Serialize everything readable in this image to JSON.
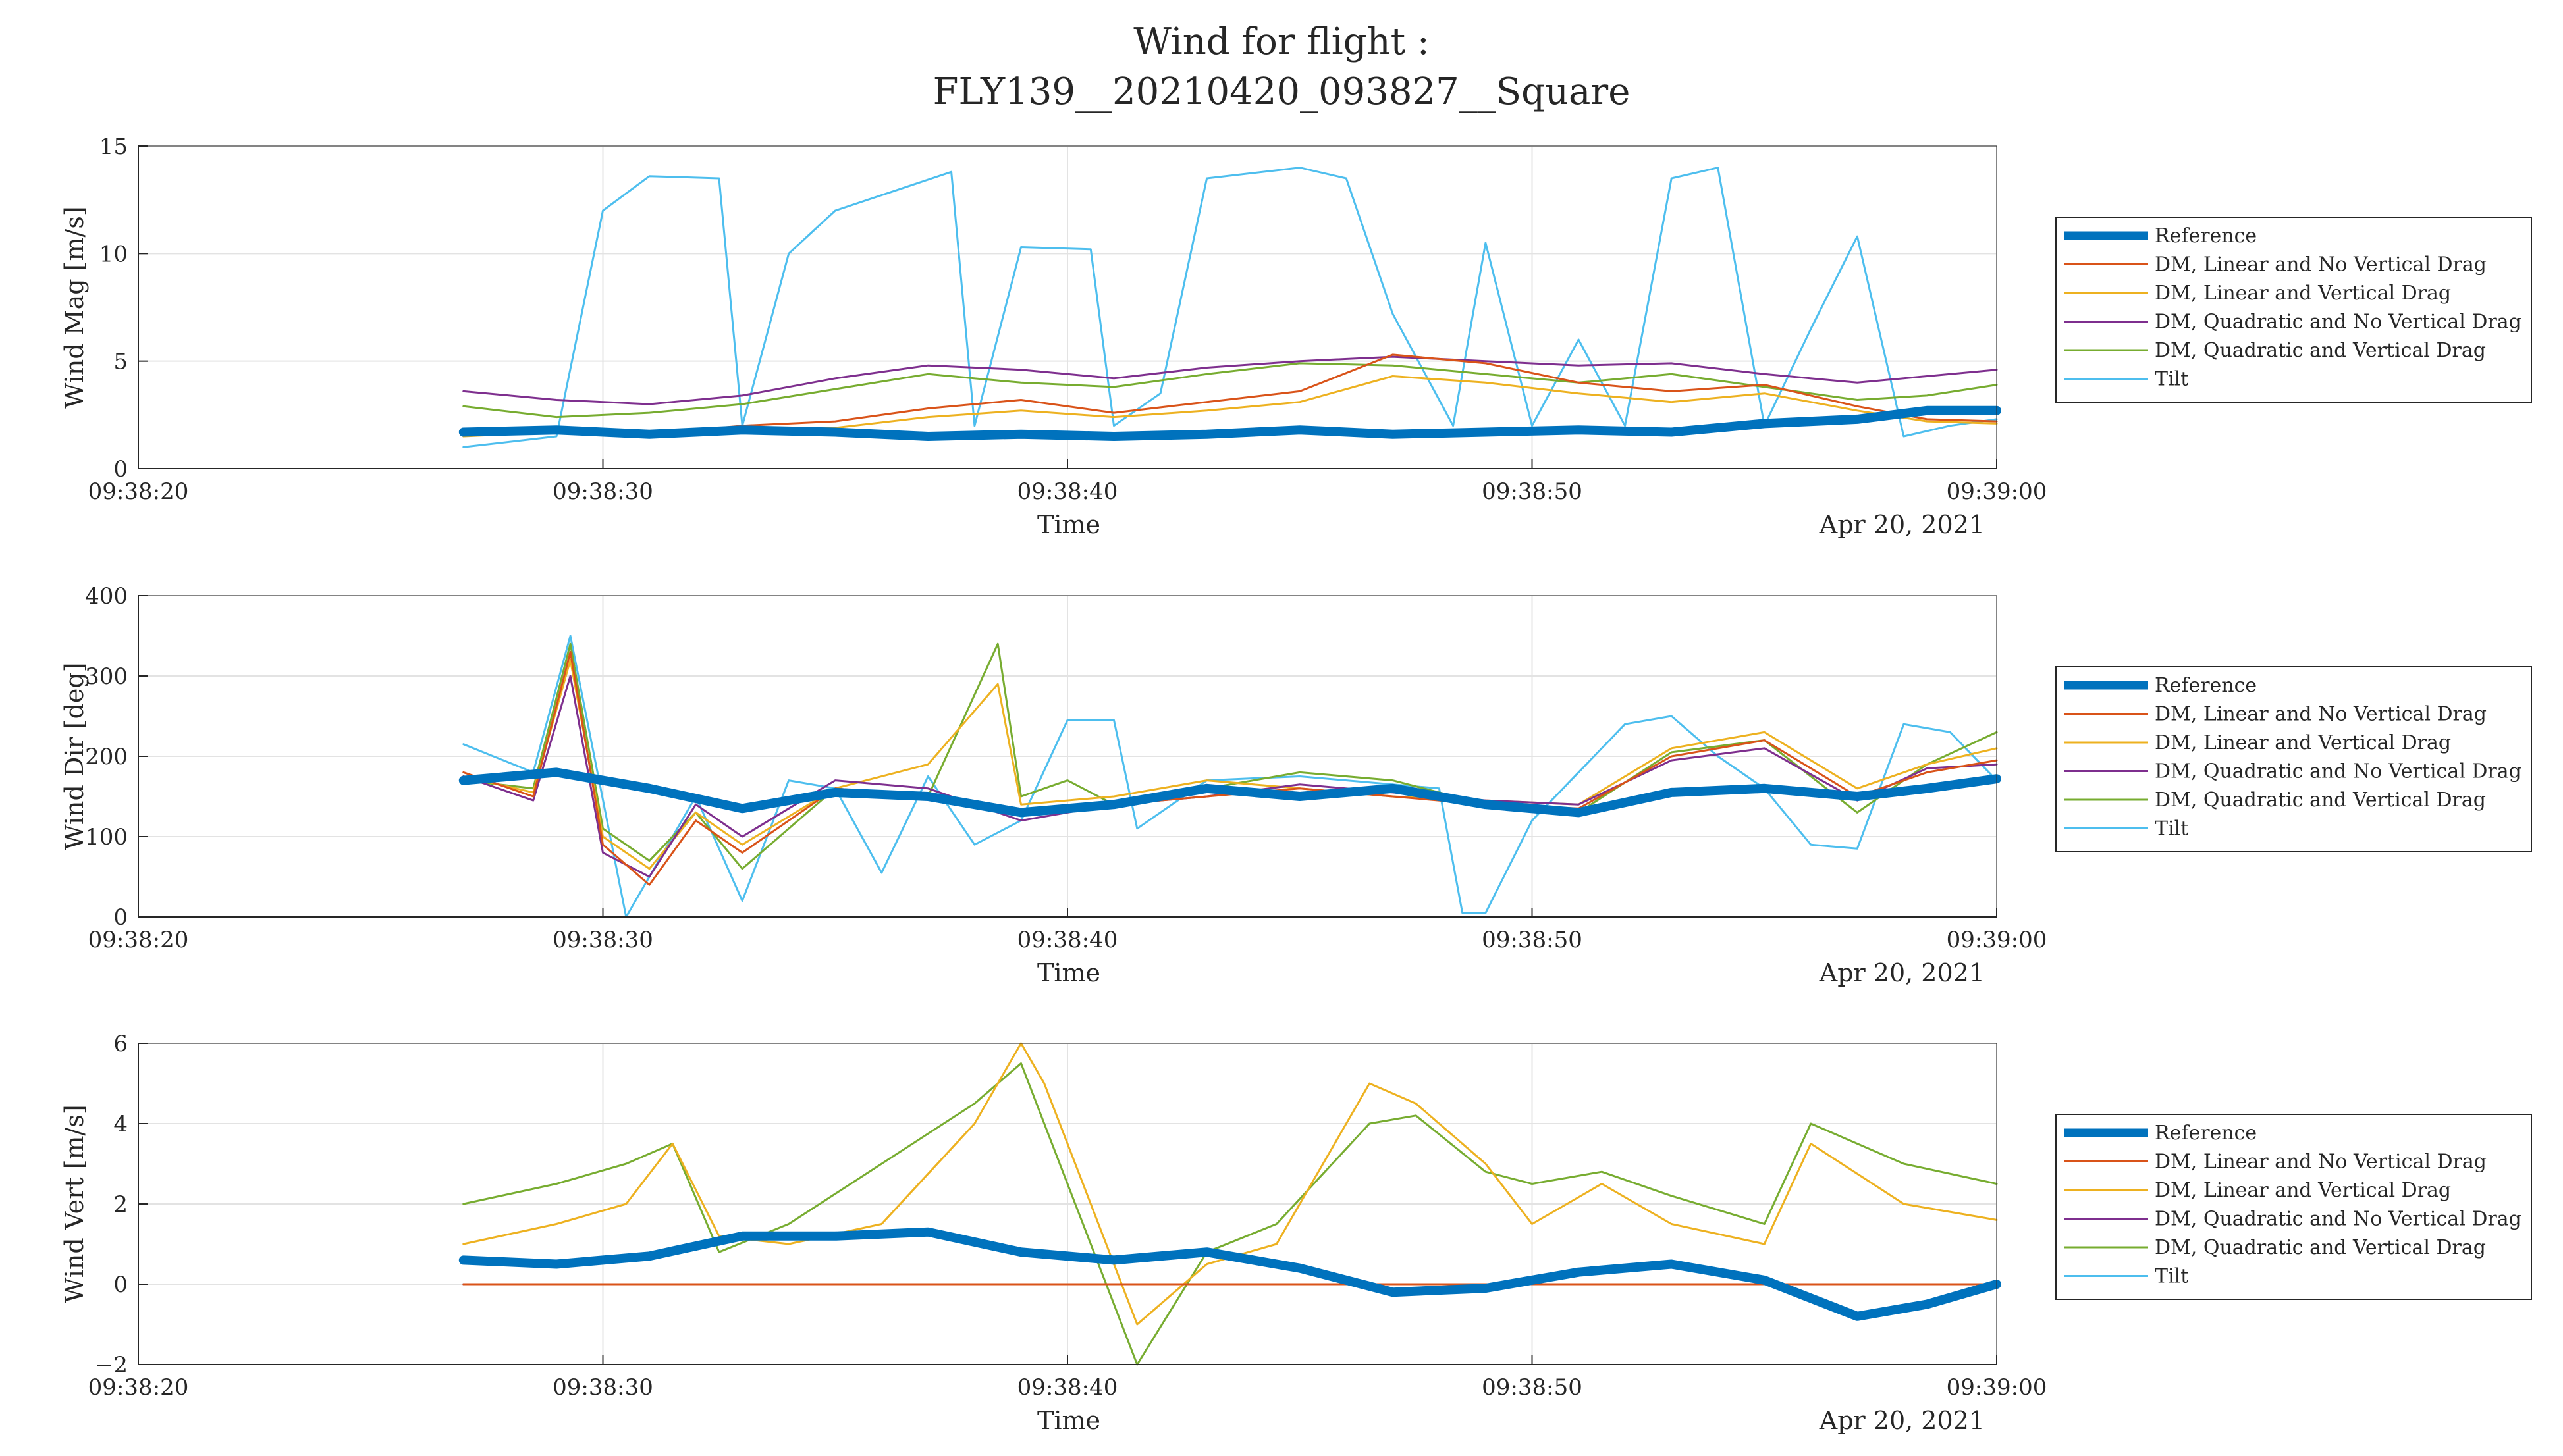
{
  "chart_data": {
    "type": "line",
    "title_lines": [
      "Wind for flight :",
      "FLY139__20210420_093827__Square"
    ],
    "x_tick_labels": [
      "09:38:20",
      "09:38:30",
      "09:38:40",
      "09:38:50",
      "09:39:00"
    ],
    "x_range_seconds": [
      0,
      40
    ],
    "xlabel": "Time",
    "date_label": "Apr 20, 2021",
    "colors": {
      "Reference": "#0072BD",
      "DM, Linear and No Vertical Drag": "#D95319",
      "DM, Linear and Vertical Drag": "#EDB120",
      "DM, Quadratic and No Vertical Drag": "#7E2F8E",
      "DM, Quadratic and Vertical Drag": "#77AC30",
      "Tilt": "#4DBEEE"
    },
    "legend": [
      "Reference",
      "DM, Linear and No Vertical Drag",
      "DM, Linear and Vertical Drag",
      "DM, Quadratic and No Vertical Drag",
      "DM, Quadratic and Vertical Drag",
      "Tilt"
    ],
    "panels": [
      {
        "ylabel": "Wind Mag [m/s]",
        "ylim": [
          0,
          15
        ],
        "yticks": [
          0,
          5,
          10,
          15
        ],
        "y_tick_labels": [
          "0",
          "5",
          "10",
          "15"
        ],
        "series": [
          {
            "name": "Reference",
            "x": [
              7,
              9,
              11,
              13,
              15,
              17,
              19,
              21,
              23,
              25,
              27,
              29,
              31,
              33,
              35,
              37,
              38.5,
              40
            ],
            "y": [
              1.7,
              1.8,
              1.6,
              1.8,
              1.7,
              1.5,
              1.6,
              1.5,
              1.6,
              1.8,
              1.6,
              1.7,
              1.8,
              1.7,
              2.1,
              2.3,
              2.7,
              2.7
            ]
          },
          {
            "name": "DM, Linear and No Vertical Drag",
            "x": [
              7,
              9,
              11,
              13,
              15,
              17,
              19,
              21,
              23,
              25,
              27,
              29,
              31,
              33,
              35,
              37,
              38.5,
              40
            ],
            "y": [
              1.8,
              1.9,
              1.6,
              2.0,
              2.2,
              2.8,
              3.2,
              2.6,
              3.1,
              3.6,
              5.3,
              4.9,
              4.0,
              3.6,
              3.9,
              2.9,
              2.3,
              2.2
            ]
          },
          {
            "name": "DM, Linear and Vertical Drag",
            "x": [
              7,
              9,
              11,
              13,
              15,
              17,
              19,
              21,
              23,
              25,
              27,
              29,
              31,
              33,
              35,
              37,
              38.5,
              40
            ],
            "y": [
              1.5,
              1.7,
              1.6,
              1.8,
              1.9,
              2.4,
              2.7,
              2.4,
              2.7,
              3.1,
              4.3,
              4.0,
              3.5,
              3.1,
              3.5,
              2.7,
              2.2,
              2.1
            ]
          },
          {
            "name": "DM, Quadratic and No Vertical Drag",
            "x": [
              7,
              9,
              11,
              13,
              15,
              17,
              19,
              21,
              23,
              25,
              27,
              29,
              31,
              33,
              35,
              37,
              38.5,
              40
            ],
            "y": [
              3.6,
              3.2,
              3.0,
              3.4,
              4.2,
              4.8,
              4.6,
              4.2,
              4.7,
              5.0,
              5.2,
              5.0,
              4.8,
              4.9,
              4.4,
              4.0,
              4.3,
              4.6
            ]
          },
          {
            "name": "DM, Quadratic and Vertical Drag",
            "x": [
              7,
              9,
              11,
              13,
              15,
              17,
              19,
              21,
              23,
              25,
              27,
              29,
              31,
              33,
              35,
              37,
              38.5,
              40
            ],
            "y": [
              2.9,
              2.4,
              2.6,
              3.0,
              3.7,
              4.4,
              4.0,
              3.8,
              4.4,
              4.9,
              4.8,
              4.4,
              4.0,
              4.4,
              3.8,
              3.2,
              3.4,
              3.9
            ]
          },
          {
            "name": "Tilt",
            "x": [
              7,
              9,
              10,
              11,
              12.5,
              13,
              14,
              15,
              17.5,
              18,
              19,
              20.5,
              21,
              22,
              23,
              25,
              26,
              27,
              28.3,
              29,
              30,
              31,
              32,
              33,
              34,
              35,
              36,
              37,
              38,
              39,
              40
            ],
            "y": [
              1.0,
              1.5,
              12.0,
              13.6,
              13.5,
              2.0,
              10.0,
              12.0,
              13.8,
              2.0,
              10.3,
              10.2,
              2.0,
              3.5,
              13.5,
              14.0,
              13.5,
              7.2,
              2.0,
              10.5,
              2.0,
              6.0,
              2.0,
              13.5,
              14.0,
              2.0,
              6.5,
              10.8,
              1.5,
              2.0,
              2.3
            ]
          }
        ]
      },
      {
        "ylabel": "Wind Dir [deg]",
        "ylim": [
          0,
          400
        ],
        "yticks": [
          0,
          100,
          200,
          300,
          400
        ],
        "y_tick_labels": [
          "0",
          "100",
          "200",
          "300",
          "400"
        ],
        "series": [
          {
            "name": "Reference",
            "x": [
              7,
              9,
              11,
              13,
              15,
              17,
              19,
              21,
              23,
              25,
              27,
              29,
              31,
              33,
              35,
              37,
              38.5,
              40
            ],
            "y": [
              170,
              180,
              160,
              135,
              155,
              150,
              130,
              140,
              160,
              150,
              160,
              140,
              130,
              155,
              160,
              150,
              160,
              172
            ]
          },
          {
            "name": "DM, Linear and No Vertical Drag",
            "x": [
              7,
              8.5,
              9.3,
              10,
              11,
              12,
              13,
              15,
              17,
              19,
              21,
              23,
              25,
              27,
              29,
              31,
              33,
              35,
              37,
              38.5,
              40
            ],
            "y": [
              180,
              150,
              330,
              90,
              40,
              120,
              80,
              160,
              150,
              130,
              140,
              150,
              160,
              150,
              140,
              135,
              200,
              220,
              150,
              180,
              195
            ]
          },
          {
            "name": "DM, Linear and Vertical Drag",
            "x": [
              7,
              8.5,
              9.3,
              10,
              11,
              12,
              13,
              15,
              17,
              18.5,
              19,
              21,
              23,
              25,
              27,
              29,
              31,
              33,
              35,
              37,
              38.5,
              40
            ],
            "y": [
              175,
              155,
              320,
              100,
              60,
              130,
              90,
              160,
              190,
              290,
              140,
              150,
              170,
              160,
              150,
              145,
              140,
              210,
              230,
              160,
              190,
              210
            ]
          },
          {
            "name": "DM, Quadratic and No Vertical Drag",
            "x": [
              7,
              8.5,
              9.3,
              10,
              11,
              12,
              13,
              15,
              17,
              19,
              21,
              23,
              25,
              27,
              29,
              31,
              33,
              35,
              37,
              38.5,
              40
            ],
            "y": [
              175,
              145,
              300,
              80,
              50,
              140,
              100,
              170,
              160,
              120,
              140,
              150,
              165,
              155,
              145,
              140,
              195,
              210,
              145,
              185,
              190
            ]
          },
          {
            "name": "DM, Quadratic and Vertical Drag",
            "x": [
              7,
              8.5,
              9.3,
              10,
              11,
              12,
              13,
              15,
              17,
              18.5,
              19,
              20,
              21,
              23,
              25,
              27,
              29,
              31,
              33,
              35,
              37,
              38.5,
              40
            ],
            "y": [
              170,
              160,
              340,
              110,
              70,
              130,
              60,
              160,
              150,
              340,
              150,
              170,
              140,
              160,
              180,
              170,
              140,
              130,
              205,
              220,
              130,
              190,
              230
            ]
          },
          {
            "name": "Tilt",
            "x": [
              7,
              8.5,
              9.3,
              10.5,
              12,
              13,
              14,
              15,
              16,
              17,
              18,
              19,
              20,
              21,
              21.5,
              23,
              25,
              27,
              28,
              28.5,
              29,
              30,
              31,
              32,
              33,
              34,
              35,
              36,
              37,
              38,
              39,
              40
            ],
            "y": [
              215,
              180,
              350,
              0,
              150,
              20,
              170,
              160,
              55,
              175,
              90,
              120,
              245,
              245,
              110,
              170,
              175,
              165,
              160,
              5,
              5,
              120,
              180,
              240,
              250,
              200,
              160,
              90,
              85,
              240,
              230,
              170
            ]
          }
        ]
      },
      {
        "ylabel": "Wind Vert [m/s]",
        "ylim": [
          -2,
          6
        ],
        "yticks": [
          -2,
          0,
          2,
          4,
          6
        ],
        "y_tick_labels": [
          "−2",
          "0",
          "2",
          "4",
          "6"
        ],
        "series": [
          {
            "name": "Reference",
            "x": [
              7,
              9,
              11,
              13,
              15,
              17,
              19,
              21,
              23,
              25,
              27,
              29,
              31,
              33,
              35,
              37,
              38.5,
              40
            ],
            "y": [
              0.6,
              0.5,
              0.7,
              1.2,
              1.2,
              1.3,
              0.8,
              0.6,
              0.8,
              0.4,
              -0.2,
              -0.1,
              0.3,
              0.5,
              0.1,
              -0.8,
              -0.5,
              0.0
            ]
          },
          {
            "name": "DM, Linear and No Vertical Drag",
            "x": [
              7,
              40
            ],
            "y": [
              0.0,
              0.0
            ]
          },
          {
            "name": "DM, Linear and Vertical Drag",
            "x": [
              7,
              9,
              10.5,
              11.5,
              12.5,
              14,
              16,
              18,
              19,
              19.5,
              20.5,
              21.5,
              23,
              24.5,
              26.5,
              27.5,
              29,
              30,
              31.5,
              33,
              35,
              36,
              38,
              40
            ],
            "y": [
              1.0,
              1.5,
              2.0,
              3.5,
              1.2,
              1.0,
              1.5,
              4.0,
              6.0,
              5.0,
              2.0,
              -1.0,
              0.5,
              1.0,
              5.0,
              4.5,
              3.0,
              1.5,
              2.5,
              1.5,
              1.0,
              3.5,
              2.0,
              1.6
            ]
          },
          {
            "name": "DM, Quadratic and No Vertical Drag",
            "x": [
              7,
              40
            ],
            "y": [
              0.0,
              0.0
            ]
          },
          {
            "name": "DM, Quadratic and Vertical Drag",
            "x": [
              7,
              9,
              10.5,
              11.5,
              12.5,
              14,
              16,
              18,
              19,
              19.5,
              20.5,
              21.5,
              23,
              24.5,
              26.5,
              27.5,
              29,
              30,
              31.5,
              33,
              35,
              36,
              38,
              40
            ],
            "y": [
              2.0,
              2.5,
              3.0,
              3.5,
              0.8,
              1.5,
              3.0,
              4.5,
              5.5,
              4.0,
              1.0,
              -2.0,
              0.8,
              1.5,
              4.0,
              4.2,
              2.8,
              2.5,
              2.8,
              2.2,
              1.5,
              4.0,
              3.0,
              2.5
            ]
          },
          {
            "name": "Tilt",
            "x": [
              7,
              40
            ],
            "y": [
              0.0,
              0.0
            ]
          }
        ]
      }
    ]
  }
}
